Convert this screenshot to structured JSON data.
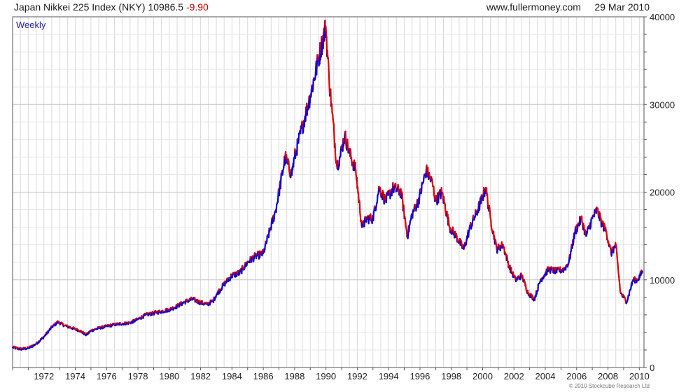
{
  "header": {
    "title": "Japan Nikkei 225 Index (NKY)",
    "last_value": "10986.5",
    "change": "-9.90",
    "website": "www.fullermoney.com",
    "date": "29 Mar 2010"
  },
  "footer": {
    "copyright": "© 2010 Stockcube Research Ltd"
  },
  "colors": {
    "up": "#0000dd",
    "down": "#dd0000",
    "grid": "#d9d9d9",
    "frame": "#555555",
    "period_label": "#2222aa"
  },
  "chart_data": {
    "type": "line",
    "period_label": "Weekly",
    "x_ticks": [
      "1972",
      "1974",
      "1976",
      "1978",
      "1980",
      "1982",
      "1984",
      "1986",
      "1988",
      "1990",
      "1992",
      "1994",
      "1996",
      "1998",
      "2000",
      "2002",
      "2004",
      "2006",
      "2008",
      "2010"
    ],
    "y_ticks": [
      "0",
      "10000",
      "20000",
      "30000",
      "40000"
    ],
    "xlim": [
      1970.0,
      2010.3
    ],
    "ylim": [
      0,
      40000
    ],
    "series": [
      {
        "x": [
          1970.0,
          1970.5,
          1971.0,
          1971.5,
          1972.0,
          1972.5,
          1972.9,
          1973.3,
          1973.8,
          1974.3,
          1974.7,
          1975.0,
          1975.5,
          1976.0,
          1976.5,
          1977.0,
          1977.5,
          1978.0,
          1978.5,
          1979.0,
          1979.5,
          1980.0,
          1980.5,
          1981.0,
          1981.5,
          1982.0,
          1982.4,
          1982.8,
          1983.0,
          1983.5,
          1984.0,
          1984.5,
          1985.0,
          1985.5,
          1986.0,
          1986.4,
          1986.8,
          1987.0,
          1987.4,
          1987.8,
          1988.0,
          1988.5,
          1989.0,
          1989.5,
          1989.99,
          1990.2,
          1990.4,
          1990.7,
          1990.9,
          1991.2,
          1991.5,
          1991.9,
          1992.3,
          1992.6,
          1993.0,
          1993.4,
          1993.8,
          1994.3,
          1994.8,
          1995.2,
          1995.5,
          1995.9,
          1996.4,
          1996.8,
          1997.0,
          1997.4,
          1997.9,
          1998.3,
          1998.8,
          1999.2,
          1999.7,
          2000.2,
          2000.5,
          2000.9,
          2001.3,
          2001.7,
          2002.1,
          2002.5,
          2002.9,
          2003.3,
          2003.7,
          2004.2,
          2004.7,
          2005.2,
          2005.5,
          2005.9,
          2006.3,
          2006.6,
          2007.0,
          2007.3,
          2007.6,
          2007.9,
          2008.2,
          2008.5,
          2008.8,
          2009.0,
          2009.2,
          2009.6,
          2009.9,
          2010.2
        ],
        "y": [
          2300,
          2100,
          2200,
          2700,
          3500,
          4600,
          5200,
          4800,
          4500,
          4200,
          3700,
          4200,
          4500,
          4700,
          4900,
          5000,
          5100,
          5500,
          6000,
          6200,
          6400,
          6600,
          7000,
          7500,
          7800,
          7400,
          7200,
          7600,
          8300,
          9500,
          10500,
          10800,
          12000,
          12700,
          13000,
          15500,
          18000,
          20000,
          24000,
          22000,
          24000,
          27500,
          31000,
          35000,
          38900,
          33000,
          29000,
          23000,
          24000,
          26500,
          24500,
          22500,
          16000,
          17000,
          17000,
          20500,
          19000,
          20500,
          20000,
          15000,
          17500,
          19000,
          22500,
          21000,
          19000,
          20000,
          16000,
          15000,
          13500,
          16000,
          18000,
          20500,
          17000,
          13500,
          14000,
          11500,
          10000,
          10500,
          8500,
          7800,
          10000,
          11200,
          11000,
          11200,
          12000,
          15500,
          17000,
          15000,
          17000,
          18000,
          16500,
          15500,
          13000,
          14000,
          8500,
          8000,
          7500,
          10000,
          10000,
          10986.5
        ]
      }
    ]
  }
}
